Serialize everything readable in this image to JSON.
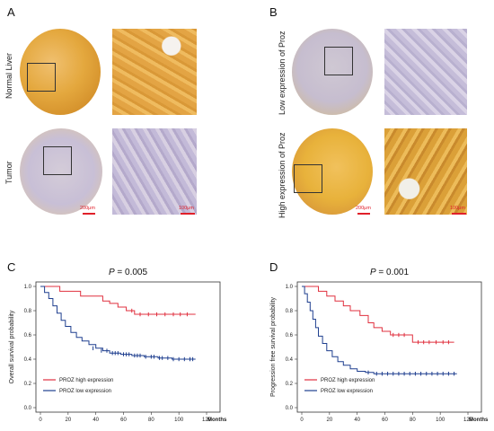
{
  "panels": {
    "A": {
      "letter": "A",
      "row1_label": "Normal Liver",
      "row2_label": "Tumor",
      "scale_core": "200μm",
      "scale_zoom": "100μm"
    },
    "B": {
      "letter": "B",
      "row1_label": "Low expression of Proz",
      "row2_label": "High expression of Proz",
      "scale_core": "200μm",
      "scale_zoom": "100μm"
    },
    "C": {
      "letter": "C"
    },
    "D": {
      "letter": "D"
    }
  },
  "colors": {
    "high": "#e0303f",
    "low": "#1f3f8f",
    "stain_brown": "#e2a63c",
    "stain_blue": "#b9b3d6"
  },
  "chart_data": [
    {
      "id": "C",
      "type": "line",
      "subtype": "kaplan-meier",
      "title": "P = 0.005",
      "p_label": "P",
      "p_value": " = 0.005",
      "ylabel": "Overall survival probability",
      "xlabel": "Months",
      "xticks": [
        "0",
        "20",
        "40",
        "60",
        "80",
        "100",
        "120"
      ],
      "yticks": [
        "0.0",
        "0.2",
        "0.4",
        "0.6",
        "0.8",
        "1.0"
      ],
      "xlim": [
        0,
        120
      ],
      "ylim": [
        0,
        1
      ],
      "legend_position": "bottom-left",
      "series": [
        {
          "name": "PROZ high expression",
          "color": "#e0303f",
          "x": [
            0,
            14,
            14,
            29,
            29,
            45,
            45,
            50,
            50,
            56,
            56,
            62,
            62,
            68,
            68,
            112
          ],
          "y": [
            1.0,
            1.0,
            0.96,
            0.96,
            0.92,
            0.92,
            0.88,
            0.88,
            0.86,
            0.86,
            0.83,
            0.83,
            0.8,
            0.8,
            0.77,
            0.77
          ],
          "censor_x": [
            66,
            72,
            78,
            84,
            90,
            96,
            101,
            106
          ],
          "censor_y": [
            0.8,
            0.77,
            0.77,
            0.77,
            0.77,
            0.77,
            0.77,
            0.77
          ]
        },
        {
          "name": "PROZ low expression",
          "color": "#1f3f8f",
          "x": [
            0,
            3,
            3,
            6,
            6,
            9,
            9,
            12,
            12,
            15,
            15,
            18,
            18,
            22,
            22,
            26,
            26,
            30,
            30,
            35,
            35,
            40,
            40,
            45,
            45,
            50,
            50,
            58,
            58,
            66,
            66,
            75,
            75,
            85,
            85,
            95,
            95,
            112
          ],
          "y": [
            1.0,
            1.0,
            0.95,
            0.95,
            0.9,
            0.9,
            0.84,
            0.84,
            0.78,
            0.78,
            0.72,
            0.72,
            0.67,
            0.67,
            0.62,
            0.62,
            0.58,
            0.58,
            0.55,
            0.55,
            0.52,
            0.52,
            0.49,
            0.49,
            0.47,
            0.47,
            0.45,
            0.45,
            0.44,
            0.44,
            0.43,
            0.43,
            0.42,
            0.42,
            0.41,
            0.41,
            0.4,
            0.4
          ],
          "censor_x": [
            38,
            44,
            48,
            52,
            54,
            56,
            60,
            62,
            64,
            68,
            70,
            72,
            76,
            80,
            82,
            86,
            88,
            92,
            96,
            100,
            104,
            108,
            110
          ],
          "censor_y": [
            0.49,
            0.47,
            0.47,
            0.45,
            0.45,
            0.45,
            0.44,
            0.44,
            0.44,
            0.43,
            0.43,
            0.43,
            0.42,
            0.42,
            0.42,
            0.41,
            0.41,
            0.41,
            0.4,
            0.4,
            0.4,
            0.4,
            0.4
          ]
        }
      ]
    },
    {
      "id": "D",
      "type": "line",
      "subtype": "kaplan-meier",
      "title": "P = 0.001",
      "p_label": "P",
      "p_value": " = 0.001",
      "ylabel": "Progression free survival probability",
      "xlabel": "Months",
      "xticks": [
        "0",
        "20",
        "40",
        "60",
        "80",
        "100",
        "120"
      ],
      "yticks": [
        "0.0",
        "0.2",
        "0.4",
        "0.6",
        "0.8",
        "1.0"
      ],
      "xlim": [
        0,
        120
      ],
      "ylim": [
        0,
        1
      ],
      "legend_position": "bottom-left",
      "series": [
        {
          "name": "PROZ high expression",
          "color": "#e0303f",
          "x": [
            0,
            12,
            12,
            18,
            18,
            24,
            24,
            30,
            30,
            35,
            35,
            42,
            42,
            48,
            48,
            52,
            52,
            58,
            58,
            64,
            64,
            80,
            80,
            110
          ],
          "y": [
            1.0,
            1.0,
            0.96,
            0.96,
            0.92,
            0.92,
            0.88,
            0.88,
            0.84,
            0.84,
            0.8,
            0.8,
            0.76,
            0.76,
            0.7,
            0.7,
            0.66,
            0.66,
            0.63,
            0.63,
            0.6,
            0.6,
            0.54,
            0.54
          ],
          "censor_x": [
            66,
            70,
            74,
            84,
            88,
            92,
            97,
            102,
            106
          ],
          "censor_y": [
            0.6,
            0.6,
            0.6,
            0.54,
            0.54,
            0.54,
            0.54,
            0.54,
            0.54
          ]
        },
        {
          "name": "PROZ low expression",
          "color": "#1f3f8f",
          "x": [
            0,
            2,
            2,
            4,
            4,
            6,
            6,
            8,
            8,
            10,
            10,
            12,
            12,
            15,
            15,
            18,
            18,
            22,
            22,
            26,
            26,
            30,
            30,
            35,
            35,
            40,
            40,
            46,
            46,
            52,
            52,
            112
          ],
          "y": [
            1.0,
            1.0,
            0.94,
            0.94,
            0.87,
            0.87,
            0.8,
            0.8,
            0.73,
            0.73,
            0.66,
            0.66,
            0.59,
            0.59,
            0.53,
            0.53,
            0.47,
            0.47,
            0.42,
            0.42,
            0.38,
            0.38,
            0.35,
            0.35,
            0.32,
            0.32,
            0.3,
            0.3,
            0.29,
            0.29,
            0.28,
            0.28
          ],
          "censor_x": [
            48,
            54,
            58,
            62,
            66,
            70,
            74,
            78,
            82,
            86,
            90,
            94,
            98,
            102,
            106,
            110
          ],
          "censor_y": [
            0.29,
            0.28,
            0.28,
            0.28,
            0.28,
            0.28,
            0.28,
            0.28,
            0.28,
            0.28,
            0.28,
            0.28,
            0.28,
            0.28,
            0.28,
            0.28
          ]
        }
      ]
    }
  ]
}
